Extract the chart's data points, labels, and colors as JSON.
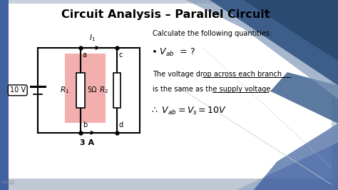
{
  "title": "Circuit Analysis – Parallel Circuit",
  "slide_bg": "#ffffff",
  "highlight_color": "#f0a0a0",
  "voltage_source": "10 V",
  "current_top": "I_1",
  "current_bottom": "3 A",
  "r1_val": "5Ω",
  "node_a": "a",
  "node_b": "b",
  "node_c": "c",
  "node_d": "d",
  "calc_text1": "Calculate the following quantities:",
  "calc_text2": "$V_{ab}$ = ?",
  "calc_text3": "The voltage drop",
  "calc_text3b": "across each branch",
  "calc_text4": "is the same as the",
  "calc_text4b": "supply voltage",
  "calc_text4c": ".",
  "calc_text5": "$\\therefore\\ V_{ab} = V_s = 10V$",
  "bg_outer": "#c8d0dc",
  "bg_blue1": "#3a5a8c",
  "bg_blue2": "#4a6a9c",
  "bg_blue3": "#5a7aac",
  "bg_blue4": "#6a8abc",
  "bg_lightblue": "#b0c0d8"
}
